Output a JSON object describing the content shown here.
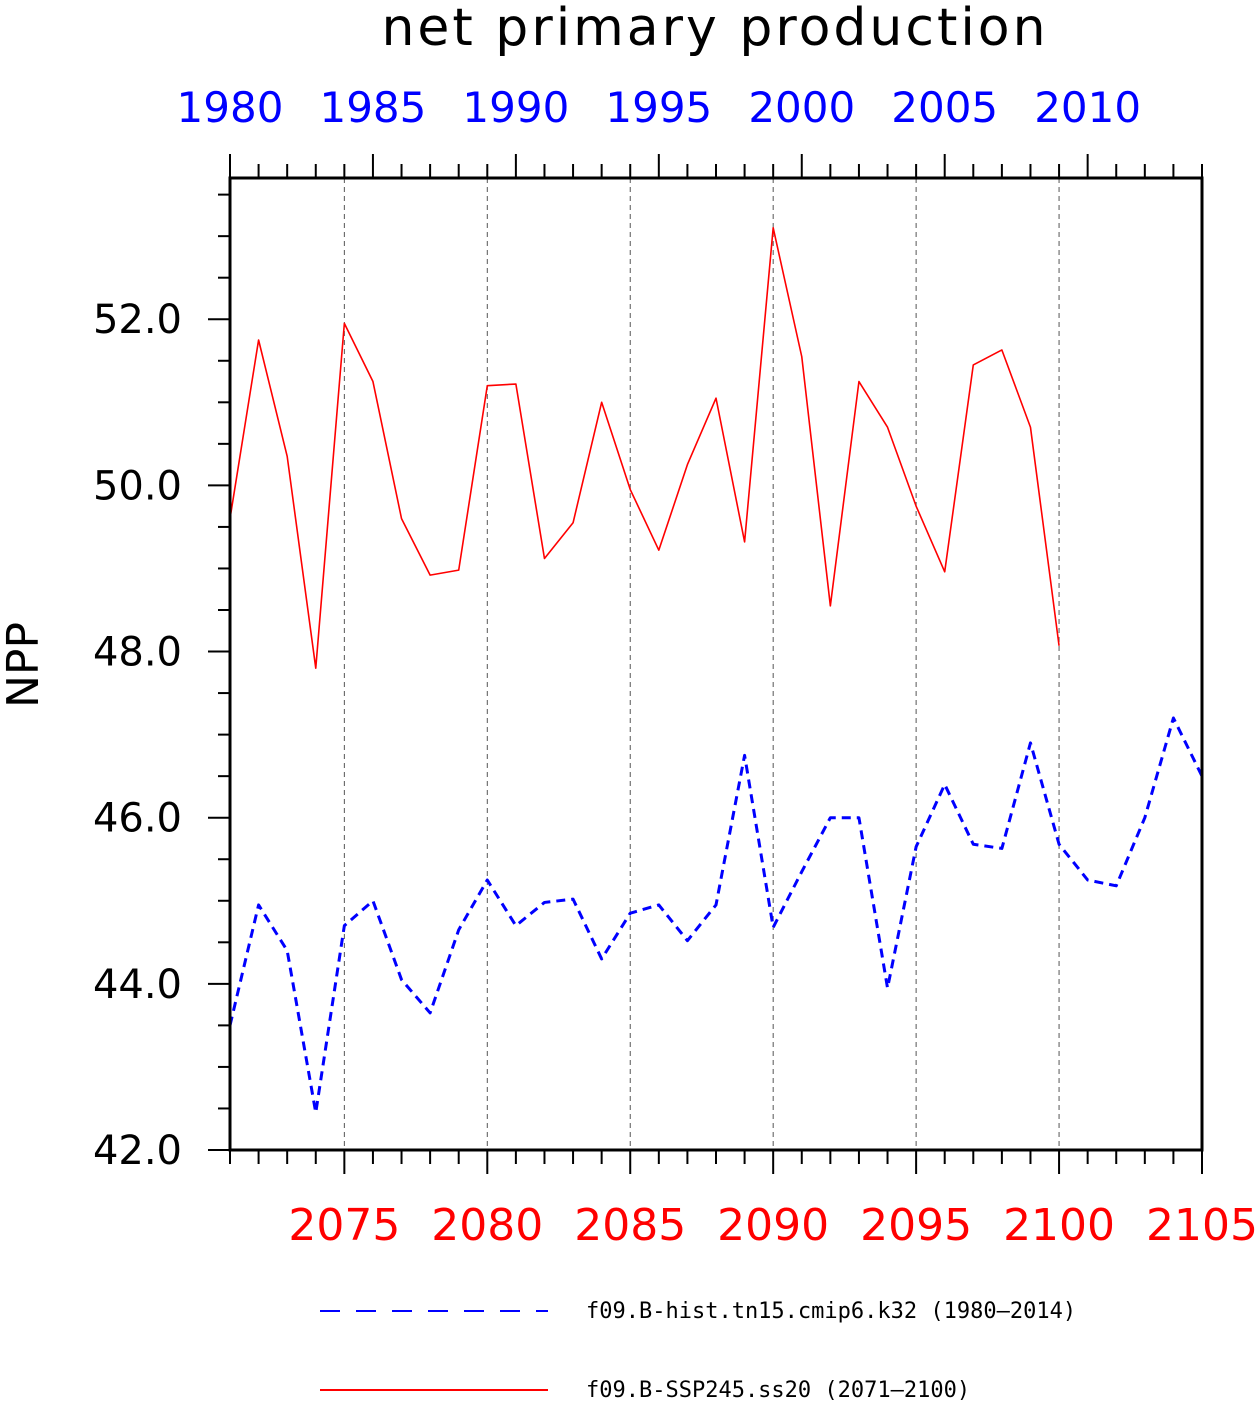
{
  "chart_data": {
    "type": "line",
    "title": "net primary production",
    "ylabel": "NPP",
    "ylim": [
      42.0,
      53.7
    ],
    "yticks": [
      "42.0",
      "44.0",
      "46.0",
      "48.0",
      "50.0",
      "52.0"
    ],
    "grid": "vertical dashed lines at major bottom ticks",
    "top_axis": {
      "color": "#0000ff",
      "range": [
        1980,
        2014
      ],
      "ticks": [
        "1980",
        "1985",
        "1990",
        "1995",
        "2000",
        "2005",
        "2010"
      ]
    },
    "bottom_axis": {
      "color": "#ff0000",
      "range": [
        2071,
        2105
      ],
      "ticks": [
        "2075",
        "2080",
        "2085",
        "2090",
        "2095",
        "2100",
        "2105"
      ]
    },
    "series": [
      {
        "name": "f09.B-hist.tn15.cmip6.k32 (1980–2014)",
        "axis": "top",
        "color": "#0000ff",
        "style": "dashed",
        "x": [
          1980,
          1981,
          1982,
          1983,
          1984,
          1985,
          1986,
          1987,
          1988,
          1989,
          1990,
          1991,
          1992,
          1993,
          1994,
          1995,
          1996,
          1997,
          1998,
          1999,
          2000,
          2001,
          2002,
          2003,
          2004,
          2005,
          2006,
          2007,
          2008,
          2009,
          2010,
          2011,
          2012,
          2013,
          2014
        ],
        "values": [
          43.5,
          44.95,
          44.4,
          42.45,
          44.7,
          45.0,
          44.05,
          43.65,
          44.65,
          45.25,
          44.7,
          44.98,
          45.02,
          44.3,
          44.85,
          44.95,
          44.52,
          44.95,
          46.75,
          44.68,
          45.35,
          46.0,
          46.0,
          43.95,
          45.65,
          46.4,
          45.68,
          45.63,
          46.9,
          45.68,
          45.25,
          45.18,
          46.0,
          47.2,
          46.5
        ]
      },
      {
        "name": "f09.B-SSP245.ss20 (2071–2100)",
        "axis": "bottom",
        "color": "#ff0000",
        "style": "solid",
        "x": [
          2071,
          2072,
          2073,
          2074,
          2075,
          2076,
          2077,
          2078,
          2079,
          2080,
          2081,
          2082,
          2083,
          2084,
          2085,
          2086,
          2087,
          2088,
          2089,
          2090,
          2091,
          2092,
          2093,
          2094,
          2095,
          2096,
          2097,
          2098,
          2099,
          2100
        ],
        "values": [
          49.6,
          51.75,
          50.35,
          47.8,
          51.95,
          51.25,
          49.6,
          48.92,
          48.98,
          51.2,
          51.22,
          49.12,
          49.55,
          51.0,
          49.95,
          49.22,
          50.25,
          51.05,
          49.32,
          53.1,
          51.55,
          48.55,
          51.25,
          50.7,
          49.75,
          48.96,
          51.45,
          51.63,
          50.7,
          48.07
        ]
      }
    ],
    "legend": {
      "placement": "bottom",
      "items": [
        {
          "label": "f09.B-hist.tn15.cmip6.k32 (1980–2014)",
          "color": "#0000ff",
          "style": "dashed"
        },
        {
          "label": "f09.B-SSP245.ss20 (2071–2100)",
          "color": "#ff0000",
          "style": "solid"
        }
      ]
    }
  }
}
